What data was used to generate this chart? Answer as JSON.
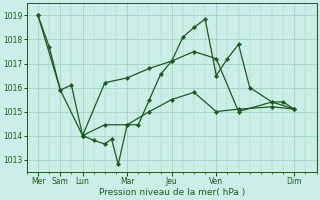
{
  "background_color": "#cceee8",
  "grid_color": "#99ccbb",
  "line_color": "#1a5c1a",
  "xlabel": "Pression niveau de la mer( hPa )",
  "ylim": [
    1012.5,
    1019.5
  ],
  "yticks": [
    1013,
    1014,
    1015,
    1016,
    1017,
    1018,
    1019
  ],
  "xlim": [
    0,
    13.0
  ],
  "xtick_labels": [
    "Mer",
    "Sam",
    "Lun",
    "Mar",
    "Jeu",
    "Ven",
    "Dim"
  ],
  "xtick_positions": [
    0.5,
    1.5,
    2.5,
    4.5,
    6.5,
    8.5,
    12.0
  ],
  "series1": [
    [
      0.5,
      1019.0
    ],
    [
      1.0,
      1017.7
    ],
    [
      1.5,
      1015.9
    ],
    [
      2.0,
      1016.1
    ],
    [
      2.5,
      1014.0
    ],
    [
      3.0,
      1013.8
    ],
    [
      3.5,
      1013.65
    ],
    [
      3.8,
      1013.85
    ],
    [
      4.1,
      1012.8
    ],
    [
      4.5,
      1014.45
    ],
    [
      5.0,
      1014.45
    ],
    [
      5.5,
      1015.5
    ],
    [
      6.0,
      1016.55
    ],
    [
      6.5,
      1017.1
    ],
    [
      7.0,
      1018.1
    ],
    [
      7.5,
      1018.5
    ],
    [
      8.0,
      1018.85
    ],
    [
      8.5,
      1016.5
    ],
    [
      9.0,
      1017.2
    ],
    [
      9.5,
      1017.8
    ],
    [
      10.0,
      1016.0
    ],
    [
      11.0,
      1015.4
    ],
    [
      11.5,
      1015.4
    ],
    [
      12.0,
      1015.1
    ]
  ],
  "series2": [
    [
      0.5,
      1019.0
    ],
    [
      1.5,
      1015.9
    ],
    [
      2.5,
      1014.0
    ],
    [
      3.5,
      1016.2
    ],
    [
      4.5,
      1016.4
    ],
    [
      5.5,
      1016.8
    ],
    [
      6.5,
      1017.1
    ],
    [
      7.5,
      1017.5
    ],
    [
      8.5,
      1017.2
    ],
    [
      9.5,
      1015.0
    ],
    [
      11.0,
      1015.4
    ],
    [
      12.0,
      1015.1
    ]
  ],
  "series3": [
    [
      2.5,
      1014.0
    ],
    [
      3.5,
      1014.45
    ],
    [
      4.5,
      1014.45
    ],
    [
      5.5,
      1015.0
    ],
    [
      6.5,
      1015.5
    ],
    [
      7.5,
      1015.8
    ],
    [
      8.5,
      1015.0
    ],
    [
      9.5,
      1015.1
    ],
    [
      11.0,
      1015.2
    ],
    [
      12.0,
      1015.1
    ]
  ]
}
